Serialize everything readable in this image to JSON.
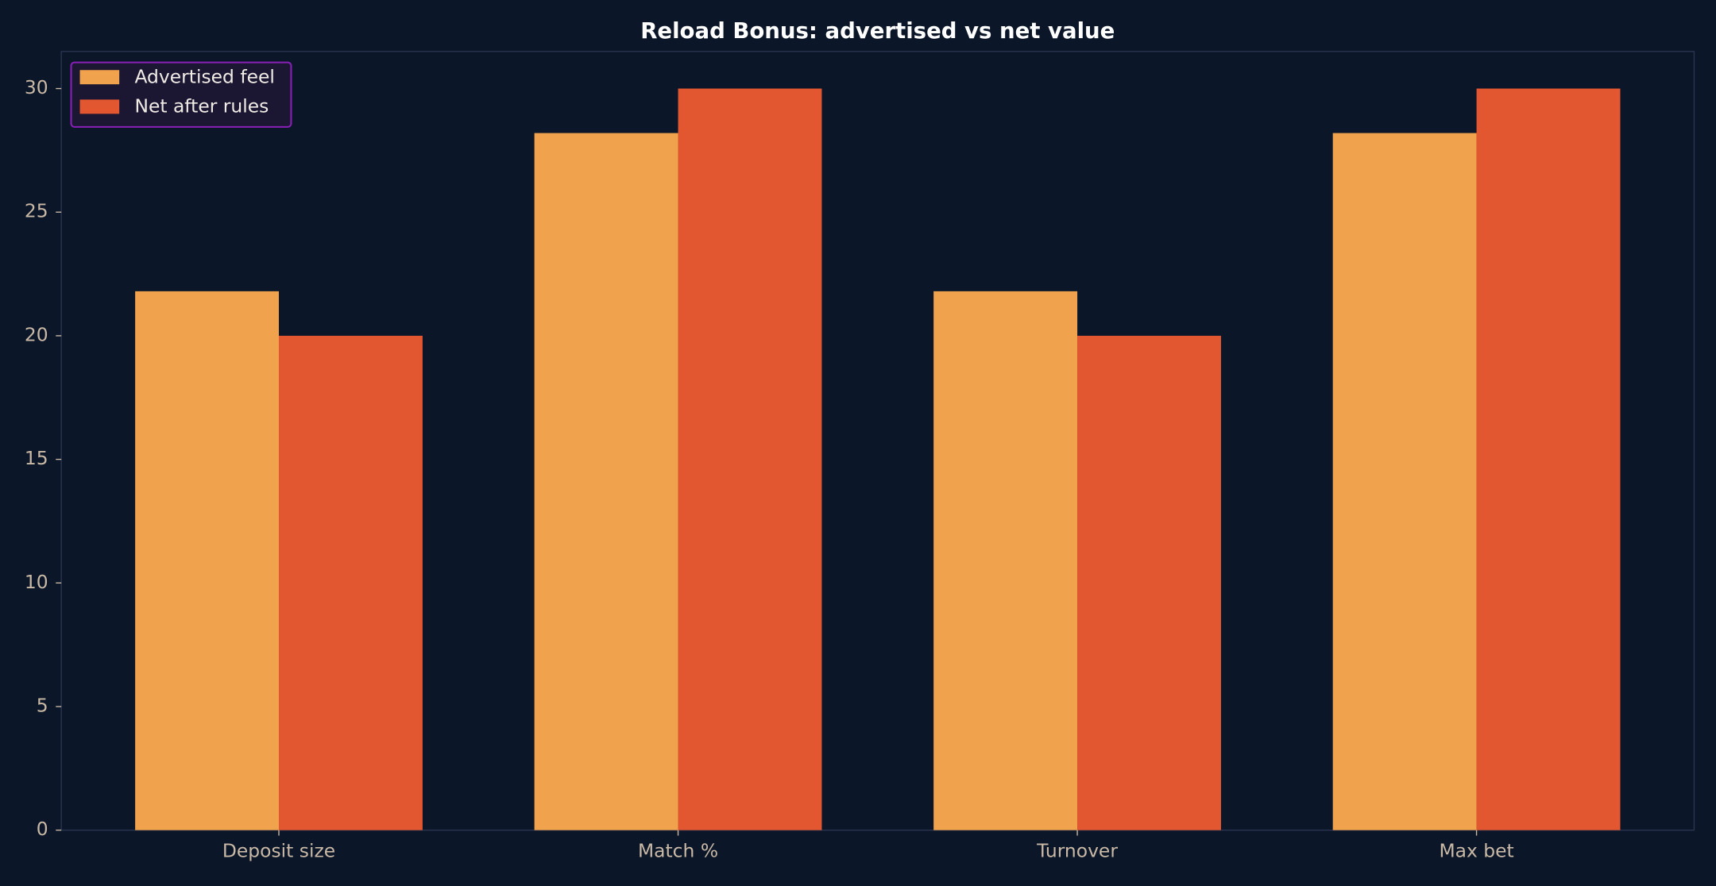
{
  "chart_data": {
    "type": "bar",
    "title": "Reload Bonus: advertised vs net value",
    "categories": [
      "Deposit size",
      "Match %",
      "Turnover",
      "Max bet"
    ],
    "series": [
      {
        "name": "Advertised feel",
        "color": "#f0a24c",
        "values": [
          21.8,
          28.2,
          21.8,
          28.2
        ]
      },
      {
        "name": "Net after rules",
        "color": "#e35730",
        "values": [
          20,
          30,
          20,
          30
        ]
      }
    ],
    "ylim": [
      0,
      31.5
    ],
    "yticks": [
      0,
      5,
      10,
      15,
      20,
      25,
      30
    ],
    "grid": false,
    "legend": "upper left"
  }
}
